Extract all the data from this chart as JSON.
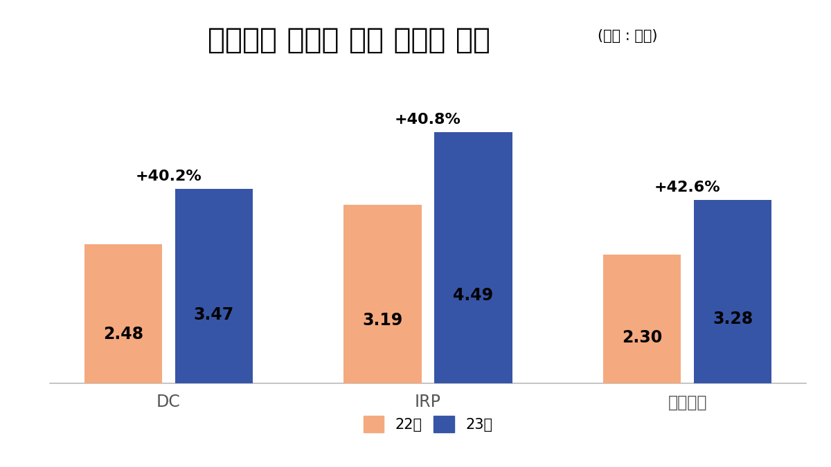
{
  "title_main": "삼성증권 개인형 연금 적립금 규모",
  "title_sub": "(단위 : 조원)",
  "categories": [
    "DC",
    "IRP",
    "연금저축"
  ],
  "values_22": [
    2.48,
    3.19,
    2.3
  ],
  "values_23": [
    3.47,
    4.49,
    3.28
  ],
  "pct_labels": [
    "+40.2%",
    "+40.8%",
    "+42.6%"
  ],
  "color_22": "#F4A97F",
  "color_23": "#3655A6",
  "legend_22": "22년",
  "legend_23": "23년",
  "bar_width": 0.3,
  "bar_gap": 0.05,
  "ylim": [
    0,
    5.6
  ],
  "background_color": "#FFFFFF",
  "value_fontsize": 17,
  "pct_fontsize": 16,
  "title_main_fontsize": 30,
  "title_sub_fontsize": 15,
  "category_fontsize": 17,
  "legend_fontsize": 15
}
